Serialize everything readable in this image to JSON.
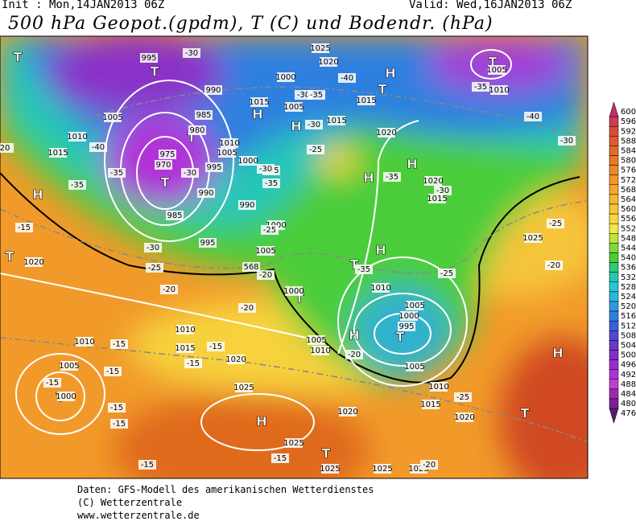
{
  "header": {
    "init": "Init : Mon,14JAN2013 06Z",
    "valid": "Valid: Wed,16JAN2013 06Z",
    "title": "500 hPa Geopot.(gpdm), T (C) und Bodendr. (hPa)"
  },
  "legend": {
    "labels": [
      600,
      596,
      592,
      588,
      584,
      580,
      576,
      572,
      568,
      564,
      560,
      556,
      552,
      548,
      544,
      540,
      536,
      532,
      528,
      524,
      520,
      516,
      512,
      508,
      504,
      500,
      496,
      492,
      488,
      484,
      480,
      476
    ],
    "colors": [
      "#c0306a",
      "#d03a58",
      "#d84a3a",
      "#e05a30",
      "#e46a2c",
      "#e8782a",
      "#ec882a",
      "#f0982a",
      "#f2a82c",
      "#f4b830",
      "#f6c836",
      "#f8d83c",
      "#f0e84a",
      "#c0e040",
      "#80d83a",
      "#4ccd3a",
      "#30c87a",
      "#26c6b0",
      "#26c8d0",
      "#28b8e0",
      "#2c98e0",
      "#2f80e0",
      "#3a60d8",
      "#5048d0",
      "#6838c8",
      "#8030c8",
      "#9830c8",
      "#b030d8",
      "#c040d0",
      "#a028b0",
      "#7a2090",
      "#5a1870"
    ]
  },
  "map": {
    "labels": [
      "H",
      "H",
      "H",
      "H",
      "H",
      "H",
      "H",
      "H",
      "H",
      "H",
      "T",
      "T",
      "T",
      "T",
      "T",
      "T",
      "T",
      "T",
      "T",
      "T",
      "T",
      "T",
      "T",
      "995",
      "1025",
      "1020",
      "1005",
      "1010",
      "1000",
      "990",
      "985",
      "980",
      "1015",
      "1005",
      "1015",
      "1015",
      "1020",
      "1005",
      "1010",
      "1015",
      "1010",
      "1005",
      "975",
      "970",
      "995",
      "1000",
      "985",
      "990",
      "990",
      "985",
      "1000",
      "995",
      "1005",
      "1020",
      "1015",
      "1025",
      "1020",
      "1000",
      "1010",
      "1005",
      "1000",
      "995",
      "1005",
      "1010",
      "1015",
      "1020",
      "1020",
      "1005",
      "1010",
      "1010",
      "1010",
      "1015",
      "1020",
      "1005",
      "1000",
      "1025",
      "1025",
      "1025",
      "1025",
      "1025",
      "-30",
      "-30",
      "-35",
      "-40",
      "-30",
      "-25",
      "-35",
      "-40",
      "-30",
      "-40",
      "-35",
      "-35",
      "-30",
      "-35",
      "-30",
      "-25",
      "-20",
      "-15",
      "-30",
      "-25",
      "-20",
      "-20",
      "-35",
      "-35",
      "-30",
      "-25",
      "-20",
      "-25",
      "-20",
      "-25",
      "-15",
      "-15",
      "-15",
      "-15",
      "-15",
      "-15",
      "-15",
      "-15",
      "-15",
      "-20",
      "568",
      "20"
    ]
  },
  "footer": [
    "Daten: GFS-Modell des amerikanischen Wetterdienstes",
    "(C) Wetterzentrale",
    "www.wetterzentrale.de"
  ]
}
